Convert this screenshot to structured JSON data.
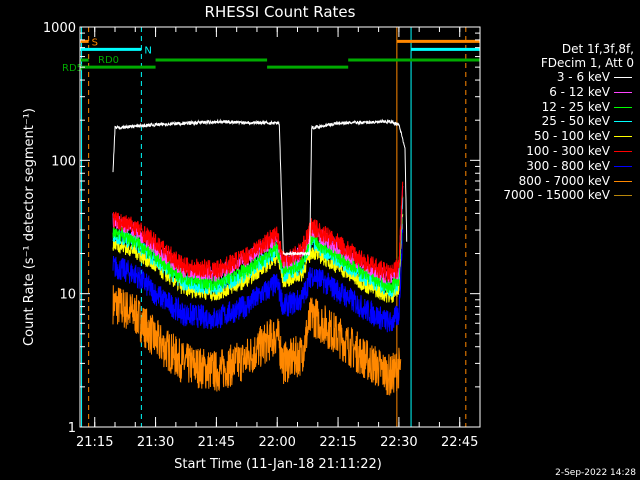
{
  "chart_data": {
    "type": "line",
    "title": "RHESSI Count Rates",
    "xlabel": "Start Time (11-Jan-18 21:11:22)",
    "ylabel": "Count Rate (s⁻¹ detector segment⁻¹)",
    "xlim": [
      "21:11:22",
      "22:50:00"
    ],
    "ylim": [
      1,
      1000
    ],
    "yscale": "log",
    "x_ticks": [
      "21:15",
      "21:30",
      "21:45",
      "22:00",
      "22:15",
      "22:30",
      "22:45"
    ],
    "y_ticks": [
      "1",
      "10",
      "100",
      "1000"
    ],
    "grid": false,
    "legend_position": "top-right",
    "legend_header": [
      "Det 1f,3f,8f,",
      "FDecim 1, Att 0"
    ],
    "series": [
      {
        "name": "3 - 6 keV",
        "color": "#ffffff",
        "points": [
          [
            "21:19:30",
            80
          ],
          [
            "21:20:00",
            175
          ],
          [
            "21:30:00",
            185
          ],
          [
            "21:45:00",
            195
          ],
          [
            "22:00:30",
            190
          ],
          [
            "22:01:30",
            20
          ],
          [
            "22:08:00",
            20
          ],
          [
            "22:08:30",
            175
          ],
          [
            "22:15:00",
            190
          ],
          [
            "22:28:00",
            195
          ],
          [
            "22:30:00",
            185
          ],
          [
            "22:31:30",
            125
          ],
          [
            "22:32:00",
            20
          ]
        ]
      },
      {
        "name": "6 - 12 keV",
        "color": "#ff44ff",
        "points": [
          [
            "21:19:30",
            35
          ],
          [
            "21:25:00",
            30
          ],
          [
            "21:30:00",
            22
          ],
          [
            "21:37:00",
            15
          ],
          [
            "21:45:00",
            14
          ],
          [
            "21:52:00",
            18
          ],
          [
            "22:00:00",
            26
          ],
          [
            "22:01:30",
            17
          ],
          [
            "22:06:00",
            20
          ],
          [
            "22:08:30",
            30
          ],
          [
            "22:15:00",
            22
          ],
          [
            "22:22:00",
            16
          ],
          [
            "22:28:00",
            13
          ],
          [
            "22:30:00",
            15
          ],
          [
            "22:31:00",
            70
          ]
        ]
      },
      {
        "name": "12 - 25 keV",
        "color": "#00ff00",
        "points": [
          [
            "21:19:30",
            30
          ],
          [
            "21:25:00",
            25
          ],
          [
            "21:30:00",
            19
          ],
          [
            "21:37:00",
            13
          ],
          [
            "21:45:00",
            12
          ],
          [
            "21:52:00",
            15
          ],
          [
            "22:00:00",
            22
          ],
          [
            "22:01:30",
            15
          ],
          [
            "22:06:00",
            17
          ],
          [
            "22:08:30",
            26
          ],
          [
            "22:15:00",
            19
          ],
          [
            "22:22:00",
            14
          ],
          [
            "22:28:00",
            11
          ],
          [
            "22:30:00",
            13
          ],
          [
            "22:31:00",
            60
          ]
        ]
      },
      {
        "name": "25 - 50 keV",
        "color": "#00ffff",
        "points": [
          [
            "21:19:30",
            28
          ],
          [
            "21:25:00",
            24
          ],
          [
            "21:30:00",
            18
          ],
          [
            "21:37:00",
            12
          ],
          [
            "21:45:00",
            11
          ],
          [
            "21:52:00",
            14
          ],
          [
            "22:00:00",
            21
          ],
          [
            "22:01:30",
            14
          ],
          [
            "22:06:00",
            16
          ],
          [
            "22:08:30",
            24
          ],
          [
            "22:15:00",
            18
          ],
          [
            "22:22:00",
            13
          ],
          [
            "22:28:00",
            10.5
          ],
          [
            "22:30:00",
            12
          ],
          [
            "22:31:00",
            55
          ]
        ]
      },
      {
        "name": "50 - 100 keV",
        "color": "#ffff00",
        "points": [
          [
            "21:19:30",
            24
          ],
          [
            "21:25:00",
            21
          ],
          [
            "21:30:00",
            16
          ],
          [
            "21:37:00",
            11
          ],
          [
            "21:45:00",
            10
          ],
          [
            "21:52:00",
            12.5
          ],
          [
            "22:00:00",
            19
          ],
          [
            "22:01:30",
            12.5
          ],
          [
            "22:06:00",
            14
          ],
          [
            "22:08:30",
            21
          ],
          [
            "22:15:00",
            16
          ],
          [
            "22:22:00",
            11.5
          ],
          [
            "22:28:00",
            9.5
          ],
          [
            "22:30:00",
            11
          ],
          [
            "22:31:00",
            50
          ]
        ]
      },
      {
        "name": "100 - 300 keV",
        "color": "#ff0000",
        "points": [
          [
            "21:19:30",
            36
          ],
          [
            "21:25:00",
            32
          ],
          [
            "21:30:00",
            24
          ],
          [
            "21:37:00",
            16
          ],
          [
            "21:45:00",
            15
          ],
          [
            "21:52:00",
            19
          ],
          [
            "22:00:00",
            28
          ],
          [
            "22:01:30",
            18
          ],
          [
            "22:06:00",
            21
          ],
          [
            "22:08:30",
            32
          ],
          [
            "22:15:00",
            24
          ],
          [
            "22:22:00",
            17
          ],
          [
            "22:28:00",
            14
          ],
          [
            "22:30:00",
            16
          ],
          [
            "22:31:00",
            75
          ]
        ]
      },
      {
        "name": "300 - 800 keV",
        "color": "#0000ff",
        "points": [
          [
            "21:19:30",
            16
          ],
          [
            "21:25:00",
            14
          ],
          [
            "21:30:00",
            10
          ],
          [
            "21:37:00",
            7
          ],
          [
            "21:45:00",
            6.5
          ],
          [
            "21:52:00",
            8
          ],
          [
            "22:00:00",
            12
          ],
          [
            "22:01:30",
            8
          ],
          [
            "22:06:00",
            9
          ],
          [
            "22:08:30",
            14
          ],
          [
            "22:15:00",
            10.5
          ],
          [
            "22:22:00",
            7.5
          ],
          [
            "22:28:00",
            6
          ],
          [
            "22:30:00",
            7
          ],
          [
            "22:31:00",
            35
          ]
        ]
      },
      {
        "name": "800 - 7000 keV",
        "color": "#ff8800",
        "points": [
          [
            "21:19:30",
            8.5
          ],
          [
            "21:25:00",
            7
          ],
          [
            "21:30:00",
            4.5
          ],
          [
            "21:37:00",
            3
          ],
          [
            "21:45:00",
            2.6
          ],
          [
            "21:52:00",
            3.2
          ],
          [
            "22:00:00",
            5
          ],
          [
            "22:01:30",
            3
          ],
          [
            "22:06:00",
            3.5
          ],
          [
            "22:08:30",
            7
          ],
          [
            "22:15:00",
            4.8
          ],
          [
            "22:22:00",
            3.2
          ],
          [
            "22:28:00",
            2.4
          ],
          [
            "22:30:00",
            2.8
          ],
          [
            "22:30:30",
            2.5
          ]
        ]
      },
      {
        "name": "7000 - 15000 keV",
        "color": "#b8860b",
        "points": []
      }
    ],
    "annotations": {
      "flags": [
        {
          "label": "S",
          "color": "#ff8800",
          "start": "21:11:22",
          "end": "21:13:30",
          "level": 780
        },
        {
          "label": "N",
          "color": "#00ffff",
          "start": "21:11:22",
          "end": "21:26:30",
          "level": 680
        },
        {
          "label": "",
          "color": "#ff8800",
          "start": "22:29:30",
          "end": "22:50:00",
          "level": 780
        },
        {
          "label": "",
          "color": "#00ffff",
          "start": "22:33:00",
          "end": "22:50:00",
          "level": 680
        },
        {
          "label": "RD0",
          "color": "#00aa00",
          "start": "21:11:22",
          "end": "21:13:30",
          "level": 565
        },
        {
          "label": "",
          "color": "#00aa00",
          "start": "21:30:00",
          "end": "21:57:30",
          "level": 565
        },
        {
          "label": "",
          "color": "#00aa00",
          "start": "22:17:30",
          "end": "22:50:00",
          "level": 565
        },
        {
          "label": "RD5",
          "color": "#00aa00",
          "start": "21:11:22",
          "end": "21:30:00",
          "level": 500
        },
        {
          "label": "",
          "color": "#00aa00",
          "start": "21:57:30",
          "end": "22:17:30",
          "level": 500
        }
      ],
      "vlines": [
        {
          "time": "21:11:45",
          "color": "#00ffff",
          "style": "solid"
        },
        {
          "time": "21:13:30",
          "color": "#ff8800",
          "style": "dashed"
        },
        {
          "time": "21:26:30",
          "color": "#00ffff",
          "style": "dashed"
        },
        {
          "time": "22:29:30",
          "color": "#ff8800",
          "style": "solid"
        },
        {
          "time": "22:33:00",
          "color": "#00ffff",
          "style": "solid"
        },
        {
          "time": "22:46:30",
          "color": "#ff8800",
          "style": "dashed"
        }
      ]
    }
  },
  "footer_date": "2-Sep-2022 14:28"
}
